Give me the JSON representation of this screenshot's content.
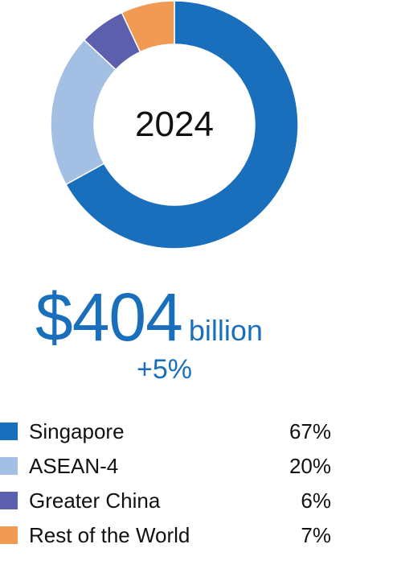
{
  "chart_data": {
    "type": "pie",
    "center_label": "2024",
    "categories": [
      "Singapore",
      "ASEAN-4",
      "Greater China",
      "Rest of the World"
    ],
    "values": [
      67,
      20,
      6,
      7
    ],
    "value_labels": [
      "67%",
      "20%",
      "6%",
      "7%"
    ],
    "colors": [
      "#1a6fbd",
      "#a3bfe3",
      "#5b5fae",
      "#f09a53"
    ],
    "legend_position": "bottom"
  },
  "summary": {
    "amount": "$404",
    "unit": "billion",
    "change": "+5%"
  }
}
